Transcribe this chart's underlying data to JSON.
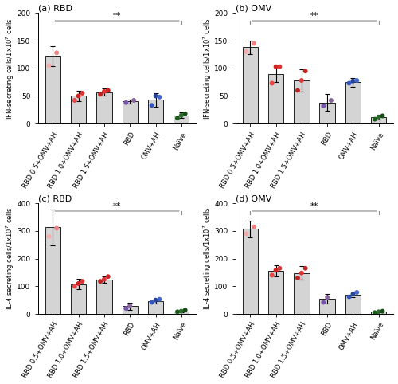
{
  "panels": [
    {
      "label": "(a) RBD",
      "ylabel": "IFN-secreting cells/1x10$^7$ cells",
      "ylim": [
        0,
        200
      ],
      "yticks": [
        0,
        50,
        100,
        150,
        200
      ],
      "bar_values": [
        122,
        50,
        57,
        40,
        43,
        15
      ],
      "bar_errors": [
        18,
        10,
        7,
        4,
        12,
        5
      ],
      "dot_values": [
        [
          105,
          128
        ],
        [
          42,
          50,
          55
        ],
        [
          53,
          58,
          60
        ],
        [
          38,
          42
        ],
        [
          33,
          50,
          48
        ],
        [
          10,
          15,
          18
        ]
      ],
      "sig_bar": [
        0,
        5
      ],
      "sig_text": "**"
    },
    {
      "label": "(b) OMV",
      "ylabel": "IFN-secreting cells/1x10$^7$ cells",
      "ylim": [
        0,
        200
      ],
      "yticks": [
        0,
        50,
        100,
        150,
        200
      ],
      "bar_values": [
        138,
        90,
        78,
        38,
        75,
        12
      ],
      "bar_errors": [
        12,
        15,
        20,
        15,
        8,
        4
      ],
      "dot_values": [
        [
          130,
          145
        ],
        [
          73,
          103,
          103
        ],
        [
          60,
          78,
          95
        ],
        [
          32,
          42
        ],
        [
          73,
          77,
          78
        ],
        [
          8,
          12,
          14
        ]
      ],
      "sig_bar": [
        0,
        5
      ],
      "sig_text": "**"
    },
    {
      "label": "(c) RBD",
      "ylabel": "IL-4 secreting cells/1x10$^7$ cells",
      "ylim": [
        0,
        400
      ],
      "yticks": [
        0,
        100,
        200,
        300,
        400
      ],
      "bar_values": [
        313,
        108,
        125,
        28,
        47,
        10
      ],
      "bar_errors": [
        65,
        18,
        12,
        12,
        8,
        4
      ],
      "dot_values": [
        [
          280,
          310
        ],
        [
          100,
          110,
          118
        ],
        [
          118,
          125,
          135
        ],
        [
          20,
          30,
          35
        ],
        [
          42,
          50,
          53
        ],
        [
          8,
          10,
          14
        ]
      ],
      "sig_bar": [
        0,
        5
      ],
      "sig_text": "**"
    },
    {
      "label": "(d) OMV",
      "ylabel": "IL-4 secreting cells/1x10$^7$ cells",
      "ylim": [
        0,
        400
      ],
      "yticks": [
        0,
        100,
        200,
        300,
        400
      ],
      "bar_values": [
        308,
        155,
        148,
        55,
        70,
        8
      ],
      "bar_errors": [
        30,
        20,
        25,
        18,
        10,
        3
      ],
      "dot_values": [
        [
          290,
          315
        ],
        [
          140,
          158,
          165
        ],
        [
          130,
          148,
          165
        ],
        [
          42,
          60,
          65
        ],
        [
          62,
          72,
          78
        ],
        [
          5,
          8,
          10
        ]
      ],
      "sig_bar": [
        0,
        5
      ],
      "sig_text": "**"
    }
  ],
  "categories": [
    "RBD 0.5+OMV+AH",
    "RBD 1.0+OMV+AH",
    "RBD 1.5+OMV+AH",
    "RBD",
    "OMV+AH",
    "Naïve"
  ],
  "bar_color": "#D4D4D4",
  "bar_edge_color": "#000000",
  "dot_size": 18,
  "all_dot_colors": [
    [
      "#F5AAAA",
      "#F08080"
    ],
    [
      "#EE4444",
      "#CC2222",
      "#DD3333"
    ],
    [
      "#BB2222",
      "#DD3333",
      "#CC2222"
    ],
    [
      "#7755AA",
      "#886699"
    ],
    [
      "#3355BB",
      "#224499",
      "#4466CC"
    ],
    [
      "#1A5C1A",
      "#2A6C2A",
      "#1A4C1A"
    ]
  ]
}
